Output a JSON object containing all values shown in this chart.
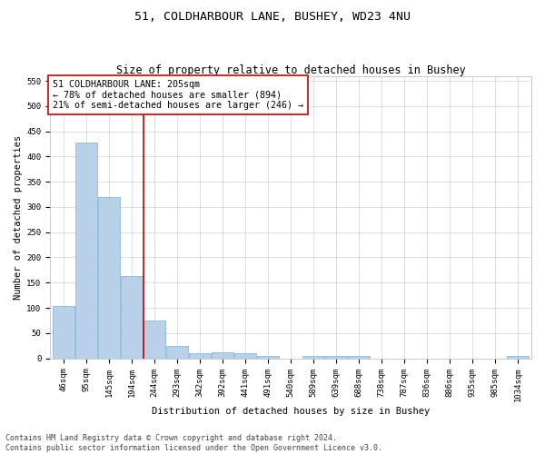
{
  "title_line1": "51, COLDHARBOUR LANE, BUSHEY, WD23 4NU",
  "title_line2": "Size of property relative to detached houses in Bushey",
  "xlabel": "Distribution of detached houses by size in Bushey",
  "ylabel": "Number of detached properties",
  "categories": [
    "46sqm",
    "95sqm",
    "145sqm",
    "194sqm",
    "244sqm",
    "293sqm",
    "342sqm",
    "392sqm",
    "441sqm",
    "491sqm",
    "540sqm",
    "589sqm",
    "639sqm",
    "688sqm",
    "738sqm",
    "787sqm",
    "836sqm",
    "886sqm",
    "935sqm",
    "985sqm",
    "1034sqm"
  ],
  "values": [
    103,
    428,
    320,
    163,
    75,
    25,
    10,
    12,
    10,
    5,
    0,
    5,
    5,
    4,
    0,
    0,
    0,
    0,
    0,
    0,
    4
  ],
  "bar_color": "#b8d0e8",
  "bar_edge_color": "#7aafd4",
  "vline_x": 3.5,
  "vline_color": "#cc0000",
  "annotation_text": "51 COLDHARBOUR LANE: 205sqm\n← 78% of detached houses are smaller (894)\n21% of semi-detached houses are larger (246) →",
  "annotation_box_color": "#ffffff",
  "annotation_box_edge": "#cc0000",
  "ylim": [
    0,
    560
  ],
  "yticks": [
    0,
    50,
    100,
    150,
    200,
    250,
    300,
    350,
    400,
    450,
    500,
    550
  ],
  "footer_line1": "Contains HM Land Registry data © Crown copyright and database right 2024.",
  "footer_line2": "Contains public sector information licensed under the Open Government Licence v3.0.",
  "title_fontsize": 9.5,
  "subtitle_fontsize": 8.5,
  "axis_label_fontsize": 7.5,
  "tick_fontsize": 6.5,
  "annotation_fontsize": 7.2,
  "footer_fontsize": 6.0
}
